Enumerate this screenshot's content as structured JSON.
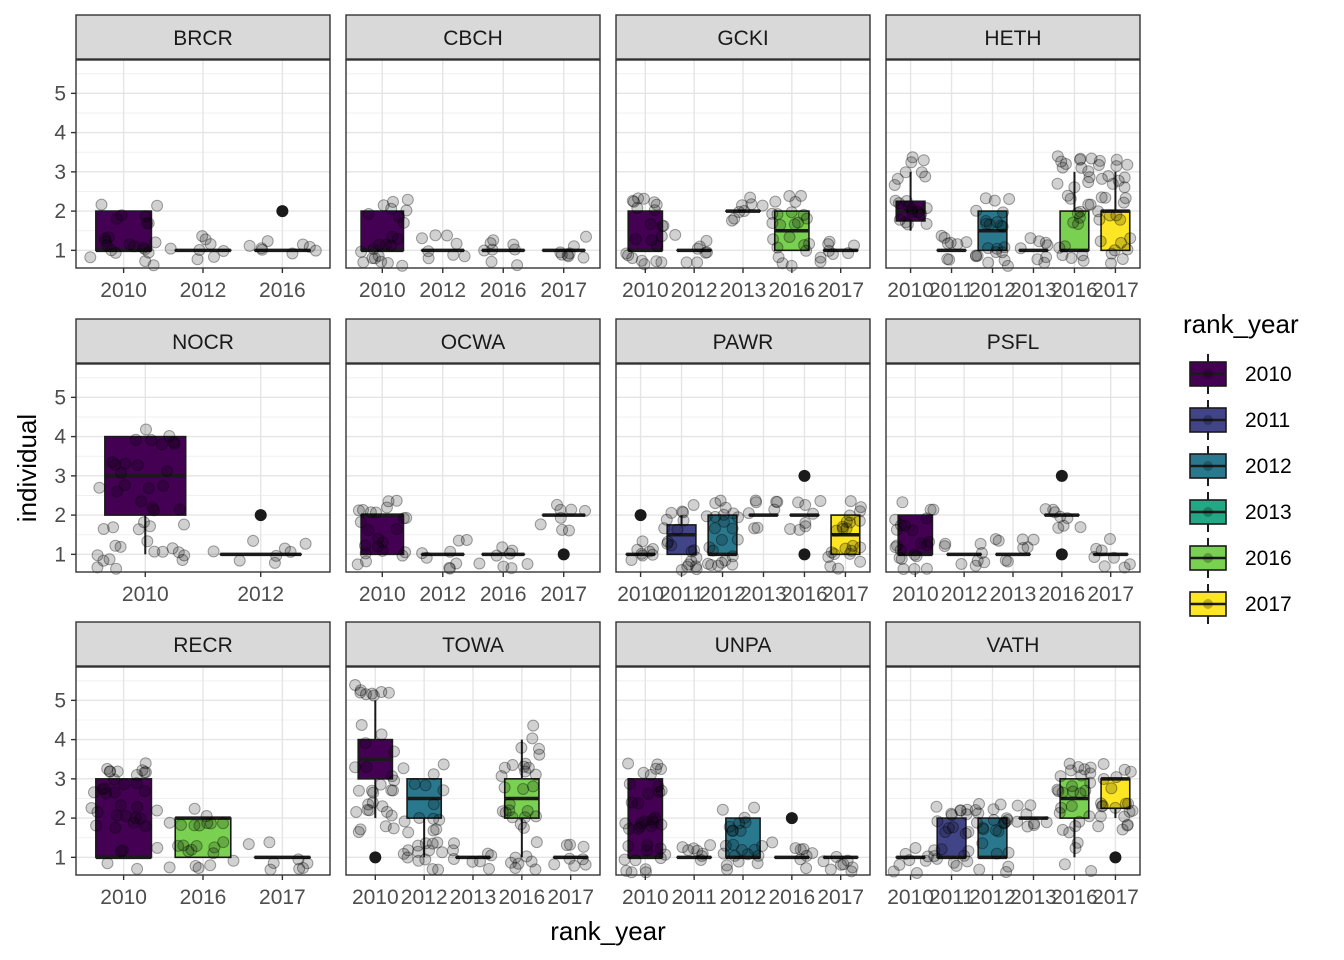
{
  "chart_data": {
    "type": "box",
    "facet_variable": "species",
    "xlabel": "rank_year",
    "ylabel": "individual",
    "ylim": [
      0.55,
      5.85
    ],
    "yticks": [
      1,
      2,
      3,
      4,
      5
    ],
    "legend": {
      "title": "rank_year",
      "position": "right",
      "items": [
        {
          "label": "2010",
          "color": "#440154"
        },
        {
          "label": "2011",
          "color": "#414487"
        },
        {
          "label": "2012",
          "color": "#2A788E"
        },
        {
          "label": "2013",
          "color": "#22A884"
        },
        {
          "label": "2016",
          "color": "#7AD151"
        },
        {
          "label": "2017",
          "color": "#FDE725"
        }
      ]
    },
    "point_style": "jittered points, black, semi-transparent",
    "panels": [
      {
        "name": "BRCR",
        "categories": [
          "2010",
          "2012",
          "2016"
        ],
        "boxes": [
          {
            "year": "2010",
            "q1": 1,
            "median": 1,
            "q3": 2,
            "lower": 1,
            "upper": 2,
            "outliers": []
          },
          {
            "year": "2012",
            "q1": 1,
            "median": 1,
            "q3": 1,
            "lower": 1,
            "upper": 1,
            "outliers": []
          },
          {
            "year": "2016",
            "q1": 1,
            "median": 1,
            "q3": 1,
            "lower": 1,
            "upper": 1,
            "outliers": [
              2
            ]
          }
        ]
      },
      {
        "name": "CBCH",
        "categories": [
          "2010",
          "2012",
          "2016",
          "2017"
        ],
        "boxes": [
          {
            "year": "2010",
            "q1": 1,
            "median": 1,
            "q3": 2,
            "lower": 1,
            "upper": 2,
            "outliers": []
          },
          {
            "year": "2012",
            "q1": 1,
            "median": 1,
            "q3": 1,
            "lower": 1,
            "upper": 1,
            "outliers": []
          },
          {
            "year": "2016",
            "q1": 1,
            "median": 1,
            "q3": 1,
            "lower": 1,
            "upper": 1,
            "outliers": []
          },
          {
            "year": "2017",
            "q1": 1,
            "median": 1,
            "q3": 1,
            "lower": 1,
            "upper": 1,
            "outliers": []
          }
        ]
      },
      {
        "name": "GCKI",
        "categories": [
          "2010",
          "2012",
          "2013",
          "2016",
          "2017"
        ],
        "boxes": [
          {
            "year": "2010",
            "q1": 1,
            "median": 1,
            "q3": 2,
            "lower": 1,
            "upper": 2,
            "outliers": []
          },
          {
            "year": "2012",
            "q1": 1,
            "median": 1,
            "q3": 1,
            "lower": 1,
            "upper": 1,
            "outliers": []
          },
          {
            "year": "2013",
            "q1": 2,
            "median": 2,
            "q3": 2,
            "lower": 2,
            "upper": 2,
            "outliers": []
          },
          {
            "year": "2016",
            "q1": 1,
            "median": 1.5,
            "q3": 2,
            "lower": 1,
            "upper": 2,
            "outliers": []
          },
          {
            "year": "2017",
            "q1": 1,
            "median": 1,
            "q3": 1,
            "lower": 1,
            "upper": 1,
            "outliers": []
          }
        ]
      },
      {
        "name": "HETH",
        "categories": [
          "2010",
          "2011",
          "2012",
          "2013",
          "2016",
          "2017"
        ],
        "boxes": [
          {
            "year": "2010",
            "q1": 1.75,
            "median": 2,
            "q3": 2.25,
            "lower": 1.5,
            "upper": 3,
            "outliers": []
          },
          {
            "year": "2011",
            "q1": 1,
            "median": 1,
            "q3": 1,
            "lower": 1,
            "upper": 1,
            "outliers": []
          },
          {
            "year": "2012",
            "q1": 1,
            "median": 1.5,
            "q3": 2,
            "lower": 1,
            "upper": 2,
            "outliers": []
          },
          {
            "year": "2013",
            "q1": 1,
            "median": 1,
            "q3": 1,
            "lower": 1,
            "upper": 1,
            "outliers": []
          },
          {
            "year": "2016",
            "q1": 1,
            "median": 1,
            "q3": 2,
            "lower": 1,
            "upper": 3,
            "outliers": []
          },
          {
            "year": "2017",
            "q1": 1,
            "median": 2,
            "q3": 2,
            "lower": 1,
            "upper": 3,
            "outliers": []
          }
        ]
      },
      {
        "name": "NOCR",
        "categories": [
          "2010",
          "2012"
        ],
        "boxes": [
          {
            "year": "2010",
            "q1": 2,
            "median": 3,
            "q3": 4,
            "lower": 1,
            "upper": 4,
            "outliers": []
          },
          {
            "year": "2012",
            "q1": 1,
            "median": 1,
            "q3": 1,
            "lower": 1,
            "upper": 1,
            "outliers": [
              2
            ]
          }
        ]
      },
      {
        "name": "OCWA",
        "categories": [
          "2010",
          "2012",
          "2016",
          "2017"
        ],
        "boxes": [
          {
            "year": "2010",
            "q1": 1,
            "median": 2,
            "q3": 2,
            "lower": 1,
            "upper": 2,
            "outliers": []
          },
          {
            "year": "2012",
            "q1": 1,
            "median": 1,
            "q3": 1,
            "lower": 1,
            "upper": 1,
            "outliers": []
          },
          {
            "year": "2016",
            "q1": 1,
            "median": 1,
            "q3": 1,
            "lower": 1,
            "upper": 1,
            "outliers": []
          },
          {
            "year": "2017",
            "q1": 2,
            "median": 2,
            "q3": 2,
            "lower": 2,
            "upper": 2,
            "outliers": [
              1
            ]
          }
        ]
      },
      {
        "name": "PAWR",
        "categories": [
          "2010",
          "2011",
          "2012",
          "2013",
          "2016",
          "2017"
        ],
        "boxes": [
          {
            "year": "2010",
            "q1": 1,
            "median": 1,
            "q3": 1,
            "lower": 1,
            "upper": 1,
            "outliers": [
              2
            ]
          },
          {
            "year": "2011",
            "q1": 1,
            "median": 1.5,
            "q3": 1.75,
            "lower": 1,
            "upper": 2,
            "outliers": []
          },
          {
            "year": "2012",
            "q1": 1,
            "median": 1,
            "q3": 2,
            "lower": 1,
            "upper": 2,
            "outliers": []
          },
          {
            "year": "2013",
            "q1": 2,
            "median": 2,
            "q3": 2,
            "lower": 2,
            "upper": 2,
            "outliers": []
          },
          {
            "year": "2016",
            "q1": 2,
            "median": 2,
            "q3": 2,
            "lower": 2,
            "upper": 2,
            "outliers": [
              1,
              3
            ]
          },
          {
            "year": "2017",
            "q1": 1,
            "median": 1.5,
            "q3": 2,
            "lower": 1,
            "upper": 2,
            "outliers": []
          }
        ]
      },
      {
        "name": "PSFL",
        "categories": [
          "2010",
          "2012",
          "2013",
          "2016",
          "2017"
        ],
        "boxes": [
          {
            "year": "2010",
            "q1": 1,
            "median": 1,
            "q3": 2,
            "lower": 1,
            "upper": 2,
            "outliers": []
          },
          {
            "year": "2012",
            "q1": 1,
            "median": 1,
            "q3": 1,
            "lower": 1,
            "upper": 1,
            "outliers": []
          },
          {
            "year": "2013",
            "q1": 1,
            "median": 1,
            "q3": 1,
            "lower": 1,
            "upper": 1,
            "outliers": []
          },
          {
            "year": "2016",
            "q1": 2,
            "median": 2,
            "q3": 2,
            "lower": 2,
            "upper": 2,
            "outliers": [
              1,
              3
            ]
          },
          {
            "year": "2017",
            "q1": 1,
            "median": 1,
            "q3": 1,
            "lower": 1,
            "upper": 1,
            "outliers": []
          }
        ]
      },
      {
        "name": "RECR",
        "categories": [
          "2010",
          "2016",
          "2017"
        ],
        "boxes": [
          {
            "year": "2010",
            "q1": 1,
            "median": 1,
            "q3": 3,
            "lower": 1,
            "upper": 3,
            "outliers": []
          },
          {
            "year": "2016",
            "q1": 1,
            "median": 2,
            "q3": 2,
            "lower": 1,
            "upper": 2,
            "outliers": []
          },
          {
            "year": "2017",
            "q1": 1,
            "median": 1,
            "q3": 1,
            "lower": 1,
            "upper": 1,
            "outliers": []
          }
        ]
      },
      {
        "name": "TOWA",
        "categories": [
          "2010",
          "2012",
          "2013",
          "2016",
          "2017"
        ],
        "boxes": [
          {
            "year": "2010",
            "q1": 3,
            "median": 3.5,
            "q3": 4,
            "lower": 2,
            "upper": 5,
            "outliers": [
              1
            ]
          },
          {
            "year": "2012",
            "q1": 2,
            "median": 2.5,
            "q3": 3,
            "lower": 1,
            "upper": 3,
            "outliers": []
          },
          {
            "year": "2013",
            "q1": 1,
            "median": 1,
            "q3": 1,
            "lower": 1,
            "upper": 1,
            "outliers": []
          },
          {
            "year": "2016",
            "q1": 2,
            "median": 2.5,
            "q3": 3,
            "lower": 1,
            "upper": 4,
            "outliers": []
          },
          {
            "year": "2017",
            "q1": 1,
            "median": 1,
            "q3": 1,
            "lower": 1,
            "upper": 1,
            "outliers": []
          }
        ]
      },
      {
        "name": "UNPA",
        "categories": [
          "2010",
          "2011",
          "2012",
          "2016",
          "2017"
        ],
        "boxes": [
          {
            "year": "2010",
            "q1": 1,
            "median": 1,
            "q3": 3,
            "lower": 1,
            "upper": 3,
            "outliers": []
          },
          {
            "year": "2011",
            "q1": 1,
            "median": 1,
            "q3": 1,
            "lower": 1,
            "upper": 1,
            "outliers": []
          },
          {
            "year": "2012",
            "q1": 1,
            "median": 1,
            "q3": 2,
            "lower": 1,
            "upper": 2,
            "outliers": []
          },
          {
            "year": "2016",
            "q1": 1,
            "median": 1,
            "q3": 1,
            "lower": 1,
            "upper": 1,
            "outliers": [
              2
            ]
          },
          {
            "year": "2017",
            "q1": 1,
            "median": 1,
            "q3": 1,
            "lower": 1,
            "upper": 1,
            "outliers": []
          }
        ]
      },
      {
        "name": "VATH",
        "categories": [
          "2010",
          "2011",
          "2012",
          "2013",
          "2016",
          "2017"
        ],
        "boxes": [
          {
            "year": "2010",
            "q1": 1,
            "median": 1,
            "q3": 1,
            "lower": 1,
            "upper": 1,
            "outliers": []
          },
          {
            "year": "2011",
            "q1": 1,
            "median": 1,
            "q3": 2,
            "lower": 1,
            "upper": 2,
            "outliers": []
          },
          {
            "year": "2012",
            "q1": 1,
            "median": 1,
            "q3": 2,
            "lower": 1,
            "upper": 2,
            "outliers": []
          },
          {
            "year": "2013",
            "q1": 2,
            "median": 2,
            "q3": 2,
            "lower": 2,
            "upper": 2,
            "outliers": []
          },
          {
            "year": "2016",
            "q1": 2,
            "median": 2.5,
            "q3": 3,
            "lower": 1,
            "upper": 3,
            "outliers": []
          },
          {
            "year": "2017",
            "q1": 2.25,
            "median": 3,
            "q3": 3,
            "lower": 2,
            "upper": 3,
            "outliers": [
              1
            ]
          }
        ]
      }
    ]
  }
}
